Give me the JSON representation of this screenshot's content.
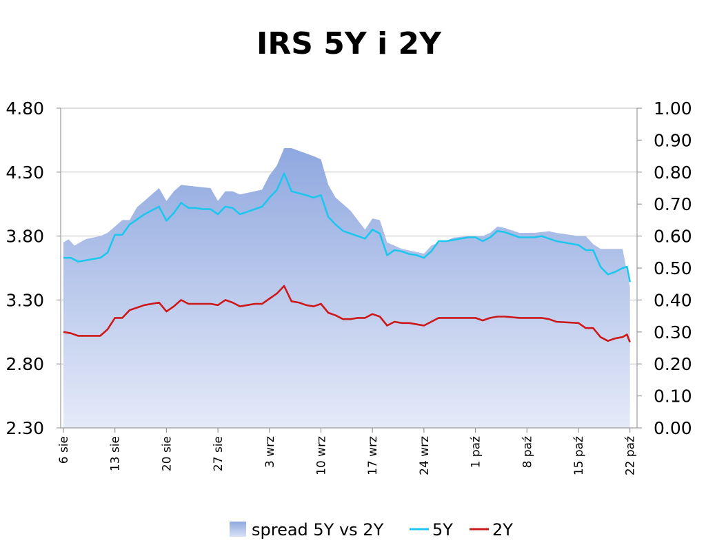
{
  "chart_data": {
    "type": "line",
    "title": "IRS 5Y i 2Y",
    "xlabel": "",
    "ylabel": "",
    "y_left": {
      "range": [
        2.3,
        4.8
      ],
      "ticks": [
        "2.30",
        "2.80",
        "3.30",
        "3.80",
        "4.30",
        "4.80"
      ]
    },
    "y_right": {
      "range": [
        0.0,
        1.0
      ],
      "ticks": [
        "0.00",
        "0.10",
        "0.20",
        "0.30",
        "0.40",
        "0.50",
        "0.60",
        "0.70",
        "0.80",
        "0.90",
        "1.00"
      ]
    },
    "x_ticks": [
      {
        "label": "6 sie",
        "day": 0
      },
      {
        "label": "13 sie",
        "day": 7
      },
      {
        "label": "20 sie",
        "day": 14
      },
      {
        "label": "27 sie",
        "day": 21
      },
      {
        "label": "3 wrz",
        "day": 28
      },
      {
        "label": "10 wrz",
        "day": 35
      },
      {
        "label": "17 wrz",
        "day": 42
      },
      {
        "label": "24 wrz",
        "day": 49
      },
      {
        "label": "1 paź",
        "day": 56
      },
      {
        "label": "8 paź",
        "day": 63
      },
      {
        "label": "15 paź",
        "day": 70
      },
      {
        "label": "22 paź",
        "day": 77
      }
    ],
    "x_max": 77.5,
    "grid": true,
    "legend_placement": "bottom",
    "series": [
      {
        "name": "spread 5Y vs 2Y",
        "axis": "right",
        "kind": "area",
        "color": "#8fa8df",
        "values": [
          [
            0,
            0.58
          ],
          [
            0.7,
            0.59
          ],
          [
            1.5,
            0.57
          ],
          [
            3,
            0.59
          ],
          [
            5,
            0.6
          ],
          [
            6,
            0.61
          ],
          [
            7,
            0.63
          ],
          [
            8,
            0.65
          ],
          [
            9,
            0.65
          ],
          [
            10,
            0.69
          ],
          [
            11,
            0.71
          ],
          [
            13,
            0.75
          ],
          [
            14,
            0.71
          ],
          [
            15,
            0.74
          ],
          [
            16,
            0.76
          ],
          [
            18,
            0.755
          ],
          [
            20,
            0.75
          ],
          [
            21,
            0.71
          ],
          [
            22,
            0.74
          ],
          [
            23,
            0.74
          ],
          [
            24,
            0.73
          ],
          [
            26,
            0.74
          ],
          [
            27,
            0.745
          ],
          [
            28,
            0.79
          ],
          [
            29,
            0.82
          ],
          [
            30,
            0.875
          ],
          [
            31,
            0.875
          ],
          [
            34,
            0.85
          ],
          [
            35,
            0.84
          ],
          [
            36,
            0.76
          ],
          [
            37,
            0.72
          ],
          [
            38,
            0.7
          ],
          [
            39,
            0.68
          ],
          [
            40,
            0.65
          ],
          [
            41,
            0.62
          ],
          [
            42,
            0.655
          ],
          [
            43,
            0.65
          ],
          [
            44,
            0.58
          ],
          [
            45,
            0.57
          ],
          [
            46,
            0.56
          ],
          [
            47,
            0.555
          ],
          [
            48,
            0.55
          ],
          [
            49,
            0.545
          ],
          [
            50,
            0.57
          ],
          [
            51,
            0.58
          ],
          [
            52,
            0.585
          ],
          [
            53,
            0.595
          ],
          [
            55,
            0.6
          ],
          [
            56,
            0.6
          ],
          [
            57,
            0.6
          ],
          [
            58,
            0.61
          ],
          [
            59,
            0.63
          ],
          [
            60,
            0.625
          ],
          [
            62,
            0.61
          ],
          [
            63,
            0.61
          ],
          [
            64,
            0.61
          ],
          [
            66,
            0.615
          ],
          [
            67,
            0.61
          ],
          [
            70,
            0.6
          ],
          [
            71,
            0.6
          ],
          [
            72,
            0.575
          ],
          [
            73,
            0.56
          ],
          [
            74,
            0.56
          ],
          [
            76,
            0.56
          ],
          [
            77,
            0.44
          ]
        ]
      },
      {
        "name": "5Y",
        "axis": "left",
        "kind": "line",
        "color": "#1ec6ee",
        "values": [
          [
            0,
            3.63
          ],
          [
            1,
            3.63
          ],
          [
            2,
            3.6
          ],
          [
            3,
            3.61
          ],
          [
            4,
            3.62
          ],
          [
            5,
            3.63
          ],
          [
            6,
            3.67
          ],
          [
            7,
            3.81
          ],
          [
            8,
            3.81
          ],
          [
            9,
            3.89
          ],
          [
            10,
            3.93
          ],
          [
            11,
            3.97
          ],
          [
            13,
            4.03
          ],
          [
            14,
            3.92
          ],
          [
            15,
            3.98
          ],
          [
            16,
            4.06
          ],
          [
            17,
            4.02
          ],
          [
            18,
            4.02
          ],
          [
            19,
            4.01
          ],
          [
            20,
            4.01
          ],
          [
            21,
            3.97
          ],
          [
            22,
            4.03
          ],
          [
            23,
            4.02
          ],
          [
            24,
            3.97
          ],
          [
            25,
            3.99
          ],
          [
            26,
            4.01
          ],
          [
            27,
            4.03
          ],
          [
            28,
            4.1
          ],
          [
            29,
            4.16
          ],
          [
            30,
            4.29
          ],
          [
            31,
            4.15
          ],
          [
            33,
            4.12
          ],
          [
            34,
            4.1
          ],
          [
            35,
            4.12
          ],
          [
            36,
            3.95
          ],
          [
            37,
            3.89
          ],
          [
            38,
            3.84
          ],
          [
            39,
            3.82
          ],
          [
            40,
            3.8
          ],
          [
            41,
            3.78
          ],
          [
            42,
            3.85
          ],
          [
            43,
            3.82
          ],
          [
            44,
            3.65
          ],
          [
            45,
            3.69
          ],
          [
            46,
            3.68
          ],
          [
            47,
            3.66
          ],
          [
            48,
            3.65
          ],
          [
            49,
            3.63
          ],
          [
            50,
            3.68
          ],
          [
            51,
            3.76
          ],
          [
            52,
            3.76
          ],
          [
            53,
            3.77
          ],
          [
            55,
            3.79
          ],
          [
            56,
            3.79
          ],
          [
            57,
            3.76
          ],
          [
            58,
            3.79
          ],
          [
            59,
            3.84
          ],
          [
            60,
            3.83
          ],
          [
            62,
            3.79
          ],
          [
            63,
            3.79
          ],
          [
            64,
            3.79
          ],
          [
            65,
            3.8
          ],
          [
            66,
            3.78
          ],
          [
            67,
            3.76
          ],
          [
            70,
            3.73
          ],
          [
            71,
            3.69
          ],
          [
            72,
            3.69
          ],
          [
            73,
            3.56
          ],
          [
            74,
            3.5
          ],
          [
            75,
            3.52
          ],
          [
            76,
            3.55
          ],
          [
            76.6,
            3.56
          ],
          [
            77,
            3.44
          ]
        ]
      },
      {
        "name": "2Y",
        "axis": "left",
        "kind": "line",
        "color": "#cc1818",
        "values": [
          [
            0,
            3.05
          ],
          [
            1,
            3.04
          ],
          [
            2,
            3.02
          ],
          [
            3,
            3.02
          ],
          [
            4,
            3.02
          ],
          [
            5,
            3.02
          ],
          [
            6,
            3.07
          ],
          [
            7,
            3.16
          ],
          [
            8,
            3.16
          ],
          [
            9,
            3.22
          ],
          [
            10,
            3.24
          ],
          [
            11,
            3.26
          ],
          [
            13,
            3.28
          ],
          [
            14,
            3.21
          ],
          [
            15,
            3.25
          ],
          [
            16,
            3.3
          ],
          [
            17,
            3.27
          ],
          [
            18,
            3.27
          ],
          [
            19,
            3.27
          ],
          [
            20,
            3.27
          ],
          [
            21,
            3.26
          ],
          [
            22,
            3.3
          ],
          [
            23,
            3.28
          ],
          [
            24,
            3.25
          ],
          [
            25,
            3.26
          ],
          [
            26,
            3.27
          ],
          [
            27,
            3.27
          ],
          [
            28,
            3.31
          ],
          [
            29,
            3.35
          ],
          [
            30,
            3.41
          ],
          [
            31,
            3.29
          ],
          [
            32,
            3.28
          ],
          [
            33,
            3.26
          ],
          [
            34,
            3.25
          ],
          [
            35,
            3.27
          ],
          [
            36,
            3.2
          ],
          [
            37,
            3.18
          ],
          [
            38,
            3.15
          ],
          [
            39,
            3.15
          ],
          [
            40,
            3.16
          ],
          [
            41,
            3.16
          ],
          [
            42,
            3.19
          ],
          [
            43,
            3.17
          ],
          [
            44,
            3.1
          ],
          [
            45,
            3.13
          ],
          [
            46,
            3.12
          ],
          [
            47,
            3.12
          ],
          [
            48,
            3.11
          ],
          [
            49,
            3.1
          ],
          [
            50,
            3.13
          ],
          [
            51,
            3.16
          ],
          [
            52,
            3.16
          ],
          [
            53,
            3.16
          ],
          [
            55,
            3.16
          ],
          [
            56,
            3.16
          ],
          [
            57,
            3.14
          ],
          [
            58,
            3.16
          ],
          [
            59,
            3.17
          ],
          [
            60,
            3.17
          ],
          [
            62,
            3.16
          ],
          [
            63,
            3.16
          ],
          [
            64,
            3.16
          ],
          [
            65,
            3.16
          ],
          [
            66,
            3.15
          ],
          [
            67,
            3.13
          ],
          [
            70,
            3.12
          ],
          [
            71,
            3.08
          ],
          [
            72,
            3.08
          ],
          [
            73,
            3.01
          ],
          [
            74,
            2.98
          ],
          [
            75,
            3.0
          ],
          [
            76,
            3.01
          ],
          [
            76.6,
            3.03
          ],
          [
            77,
            2.97
          ]
        ]
      }
    ]
  }
}
